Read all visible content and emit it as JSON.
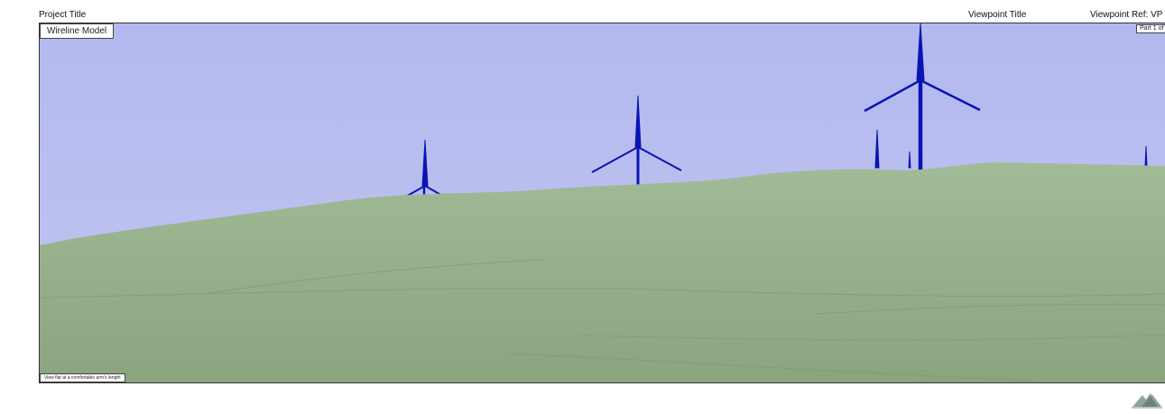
{
  "header": {
    "project_title": "Project Title",
    "viewpoint_title": "Viewpoint Title",
    "viewpoint_ref": "Viewpoint Ref: VP"
  },
  "labels": {
    "model": "Wireline Model",
    "part": "Part 1 of",
    "view_note": "View flat at a comfortable arm's length"
  },
  "colors": {
    "sky": "#b7bcf0",
    "terrain": "#9bb48e",
    "turbine": "#0a14b4"
  },
  "icons": {
    "logo": "mountain-logo-icon"
  }
}
